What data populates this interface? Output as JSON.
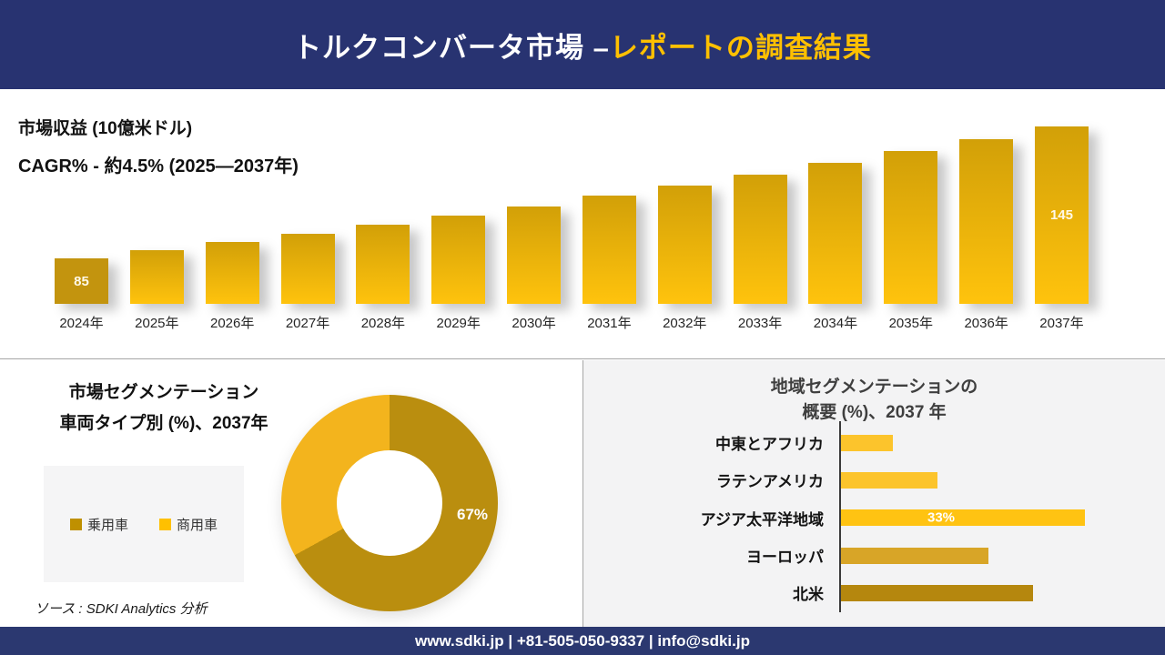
{
  "header": {
    "title_main": "トルクコンバータ市場 –",
    "title_accent": "レポートの調査結果"
  },
  "revenue_section": {
    "metric_label": "市場収益 (10億米ドル)",
    "cagr_label": "CAGR% - 約4.5% (2025―2037年)"
  },
  "segmentation_section": {
    "title_line1": "市場セグメンテーション",
    "title_line2": "車両タイプ別 (%)、2037年",
    "legend": [
      {
        "label": "乗用車"
      },
      {
        "label": "商用車"
      }
    ]
  },
  "regional_section": {
    "title_line1": "地域セグメンテーションの",
    "title_line2": "概要 (%)、2037 年"
  },
  "source_note": "ソース : SDKI Analytics 分析",
  "footer": {
    "text": "www.sdki.jp | +81-505-050-9337 | info@sdki.jp"
  },
  "chart_data": [
    {
      "type": "bar",
      "title": "市場収益 (10億米ドル)",
      "subtitle": "CAGR% - 約4.5% (2025―2037年)",
      "categories": [
        "2024年",
        "2025年",
        "2026年",
        "2027年",
        "2028年",
        "2029年",
        "2030年",
        "2031年",
        "2032年",
        "2033年",
        "2034年",
        "2035年",
        "2036年",
        "2037年"
      ],
      "values": [
        85,
        88.6,
        92.3,
        96.2,
        100.2,
        104.4,
        108.8,
        113.4,
        118.1,
        123.1,
        128.3,
        133.7,
        139.3,
        145
      ],
      "data_labels": {
        "2024年": "85",
        "2037年": "145"
      },
      "ylabel": "10億米ドル",
      "grid": false,
      "axis_visible": false
    },
    {
      "type": "pie",
      "donut": true,
      "title": "市場セグメンテーション 車両タイプ別 (%)、2037年",
      "labels": [
        "乗用車",
        "商用車"
      ],
      "values": [
        67,
        33
      ],
      "data_label": "67%",
      "legend_position": "left"
    },
    {
      "type": "bar",
      "orientation": "horizontal",
      "title": "地域セグメンテーションの概要 (%)、2037 年",
      "categories": [
        "中東とアフリカ",
        "ラテンアメリカ",
        "アジア太平洋地域",
        "ヨーロッパ",
        "北米"
      ],
      "values": [
        7,
        13,
        33,
        20,
        26
      ],
      "data_labels": {
        "アジア太平洋地域": "33%"
      },
      "xlim": [
        0,
        40
      ],
      "grid": false
    }
  ],
  "colors": {
    "navy": "#283371",
    "accent_yellow": "#FFC000",
    "bar_gradient_top": "#D2A008",
    "bar_gradient_bottom": "#FFC30D",
    "bar_first": "#C3940E",
    "donut_primary": "#BA8E0F",
    "donut_secondary": "#F3B41D",
    "legend_swatches": [
      "#BF9000",
      "#FFC000"
    ],
    "regional_bars": [
      "#FCC42C",
      "#FCC42C",
      "#FFC312",
      "#D8A527",
      "#B5870E"
    ],
    "panel_gray": "#F3F3F4",
    "divider": "#A6A6A6"
  }
}
